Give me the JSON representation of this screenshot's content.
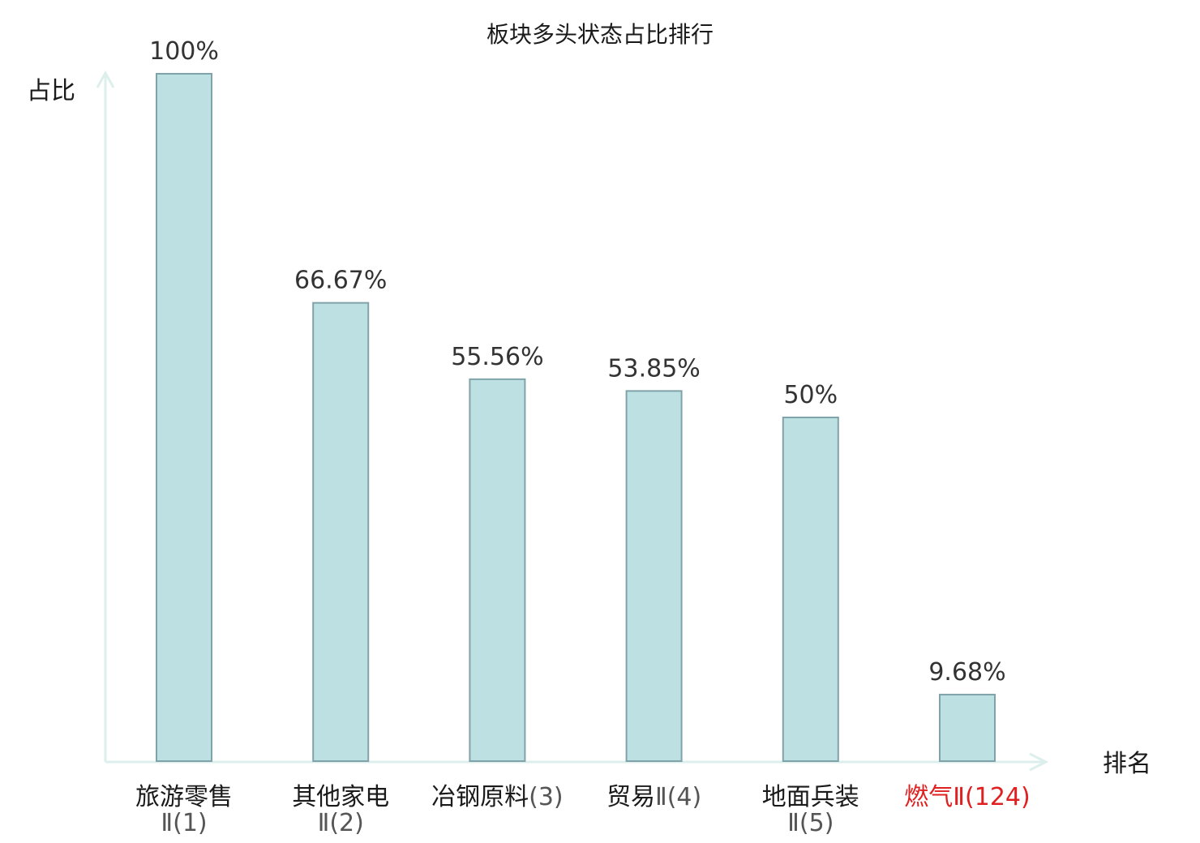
{
  "chart_data": {
    "type": "bar",
    "title": "板块多头状态占比排行",
    "ylabel": "占比",
    "xlabel": "排名",
    "ylim": [
      0,
      100
    ],
    "grid": false,
    "categories": [
      {
        "name": "旅游零售",
        "rank": "Ⅱ(1)",
        "highlight": false
      },
      {
        "name": "其他家电",
        "rank": "Ⅱ(2)",
        "highlight": false
      },
      {
        "name": "冶钢原料",
        "rank": "(3)",
        "highlight": false
      },
      {
        "name": "贸易",
        "rank": "Ⅱ(4)",
        "highlight": false
      },
      {
        "name": "地面兵装",
        "rank": "Ⅱ(5)",
        "highlight": false
      },
      {
        "name": "燃气",
        "rank": "Ⅱ(124)",
        "highlight": true
      }
    ],
    "values": [
      100,
      66.67,
      55.56,
      53.85,
      50,
      9.68
    ],
    "value_labels": [
      "100%",
      "66.67%",
      "55.56%",
      "53.85%",
      "50%",
      "9.68%"
    ]
  },
  "colors": {
    "bar_fill": "#bde0e3",
    "bar_stroke": "#7fa3a8",
    "axis": "#dcefed",
    "highlight_label": "#e02020"
  }
}
